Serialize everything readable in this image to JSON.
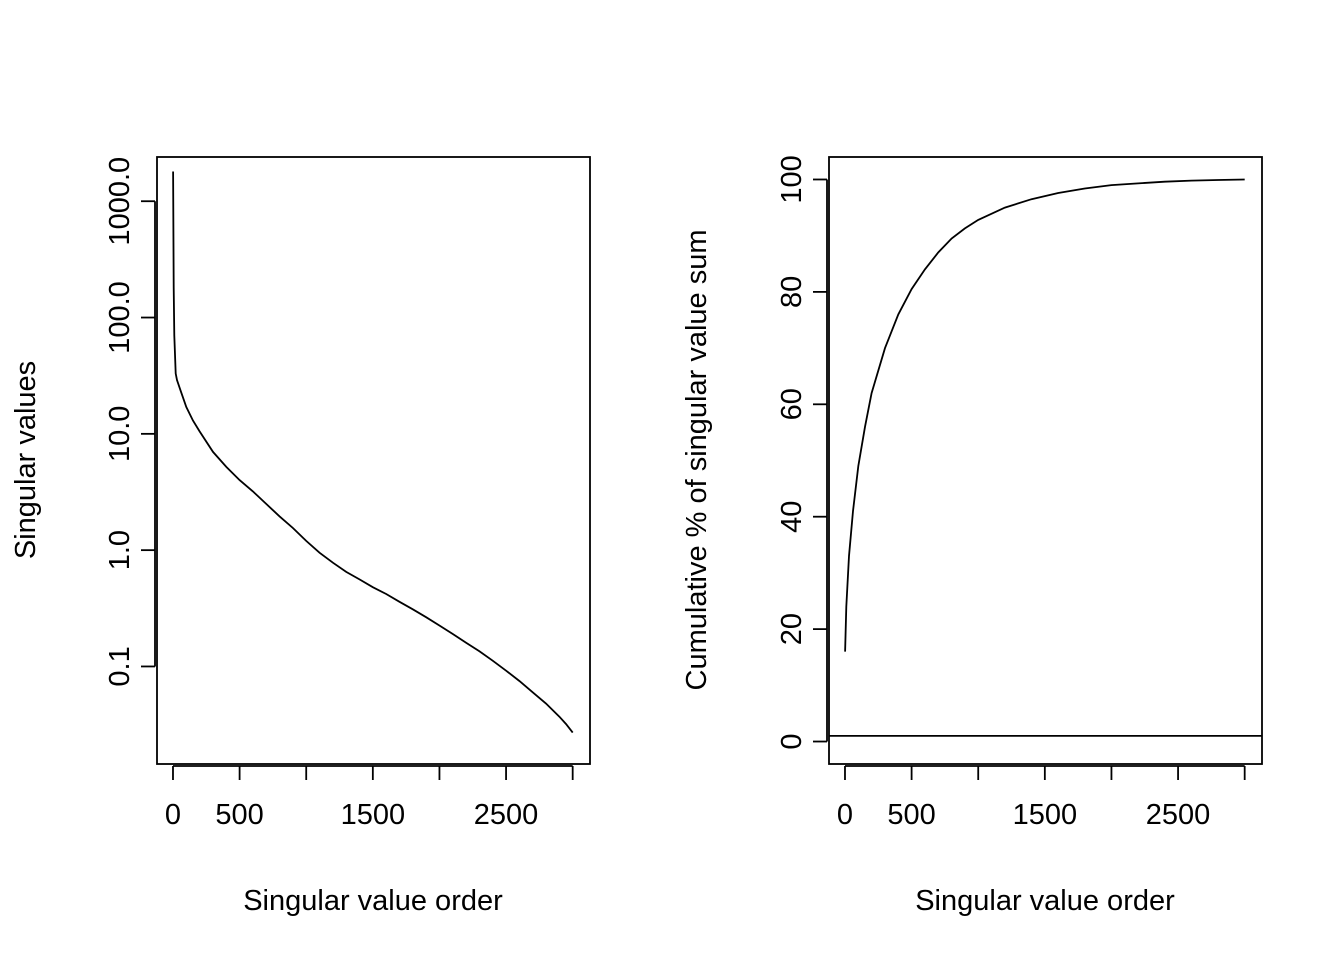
{
  "chart_data": [
    {
      "type": "line",
      "name": "singular-values",
      "xlabel": "Singular value order",
      "ylabel": "Singular values",
      "yscale": "log",
      "xlim": [
        -120,
        3130
      ],
      "ylim": [
        0.0145,
        2400
      ],
      "xticks": [
        0,
        500,
        1000,
        1500,
        2000,
        2500,
        3000
      ],
      "xtick_labels": [
        "0",
        "500",
        "",
        "1500",
        "",
        "2500",
        ""
      ],
      "yticks": [
        0.1,
        1,
        10,
        100,
        1000
      ],
      "ytick_labels": [
        "0.1",
        "1.0",
        "10.0",
        "100.0",
        "1000.0"
      ],
      "series": [
        {
          "name": "singular values",
          "x": [
            1,
            5,
            10,
            20,
            30,
            60,
            100,
            150,
            200,
            300,
            400,
            500,
            600,
            700,
            800,
            900,
            1000,
            1100,
            1200,
            1300,
            1400,
            1500,
            1600,
            1700,
            1800,
            1900,
            2000,
            2100,
            2200,
            2300,
            2400,
            2500,
            2600,
            2700,
            2800,
            2900,
            2950,
            3000
          ],
          "y": [
            1800,
            180,
            70,
            33,
            29,
            23,
            17,
            13,
            10.5,
            7,
            5.2,
            4,
            3.2,
            2.5,
            1.95,
            1.55,
            1.2,
            0.95,
            0.78,
            0.65,
            0.56,
            0.48,
            0.42,
            0.36,
            0.31,
            0.265,
            0.225,
            0.19,
            0.16,
            0.135,
            0.112,
            0.092,
            0.075,
            0.06,
            0.048,
            0.037,
            0.032,
            0.027
          ]
        }
      ]
    },
    {
      "type": "line",
      "name": "cumulative-percent",
      "xlabel": "Singular value order",
      "ylabel": "Cumulative % of singular value sum",
      "xlim": [
        -120,
        3130
      ],
      "ylim": [
        -4,
        104
      ],
      "xticks": [
        0,
        500,
        1000,
        1500,
        2000,
        2500,
        3000
      ],
      "xtick_labels": [
        "0",
        "500",
        "",
        "1500",
        "",
        "2500",
        ""
      ],
      "yticks": [
        0,
        20,
        40,
        60,
        80,
        100
      ],
      "ytick_labels": [
        "0",
        "20",
        "40",
        "60",
        "80",
        "100"
      ],
      "hline": 1,
      "series": [
        {
          "name": "cumulative %",
          "x": [
            1,
            10,
            30,
            60,
            100,
            150,
            200,
            300,
            400,
            500,
            600,
            700,
            800,
            900,
            1000,
            1200,
            1400,
            1600,
            1800,
            2000,
            2200,
            2400,
            2600,
            2800,
            3000
          ],
          "y": [
            16,
            24,
            33,
            41,
            49,
            56,
            62,
            70,
            76,
            80.5,
            84,
            87,
            89.5,
            91.3,
            92.8,
            95,
            96.5,
            97.6,
            98.4,
            99,
            99.3,
            99.6,
            99.8,
            99.9,
            100
          ]
        }
      ]
    }
  ]
}
